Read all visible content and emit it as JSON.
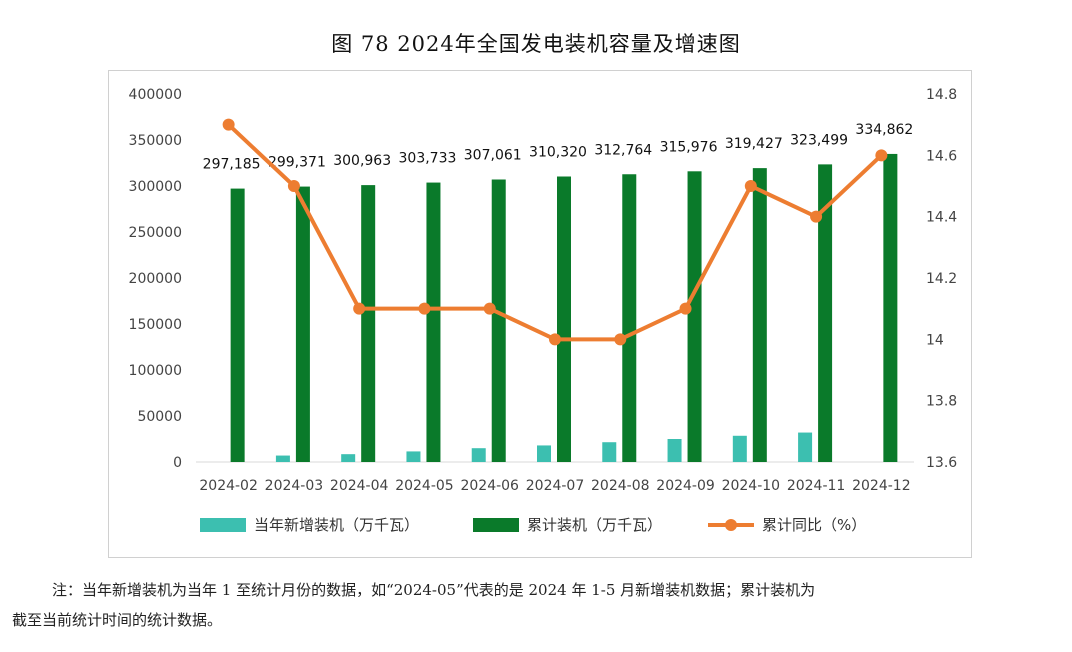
{
  "chart_data": {
    "type": "bar",
    "title": "图 78 2024年全国发电装机容量及增速图",
    "categories": [
      "2024-02",
      "2024-03",
      "2024-04",
      "2024-05",
      "2024-06",
      "2024-07",
      "2024-08",
      "2024-09",
      "2024-10",
      "2024-11",
      "2024-12"
    ],
    "series": [
      {
        "name": "当年新增装机（万千瓦）",
        "type": "bar",
        "axis": "left",
        "color": "#3cbfb0",
        "values": [
          null,
          7000,
          8500,
          11500,
          15000,
          18000,
          21500,
          25000,
          28500,
          32000,
          null
        ]
      },
      {
        "name": "累计装机（万千瓦）",
        "type": "bar",
        "axis": "left",
        "color": "#0a7a2a",
        "values": [
          297185,
          299371,
          300963,
          303733,
          307061,
          310320,
          312764,
          315976,
          319427,
          323499,
          334862
        ],
        "labels": [
          "297,185",
          "299,371",
          "300,963",
          "303,733",
          "307,061",
          "310,320",
          "312,764",
          "315,976",
          "319,427",
          "323,499",
          "334,862"
        ]
      },
      {
        "name": "累计同比（%）",
        "type": "line",
        "axis": "right",
        "color": "#ed7d31",
        "values": [
          14.7,
          14.5,
          14.1,
          14.1,
          14.1,
          14.0,
          14.0,
          14.1,
          14.5,
          14.4,
          14.6
        ]
      }
    ],
    "y_left": {
      "min": 0,
      "max": 400000,
      "ticks": [
        "0",
        "50000",
        "100000",
        "150000",
        "200000",
        "250000",
        "300000",
        "350000",
        "400000"
      ]
    },
    "y_right": {
      "min": 13.6,
      "max": 14.8,
      "ticks": [
        "13.6",
        "13.8",
        "14",
        "14.2",
        "14.4",
        "14.6",
        "14.8"
      ]
    },
    "grid": false,
    "legend": "bottom"
  },
  "note": {
    "line1": "注：当年新增装机为当年 1 至统计月份的数据，如“2024-05”代表的是 2024 年 1-5 月新增装机数据；累计装机为",
    "line2": "截至当前统计时间的统计数据。"
  }
}
